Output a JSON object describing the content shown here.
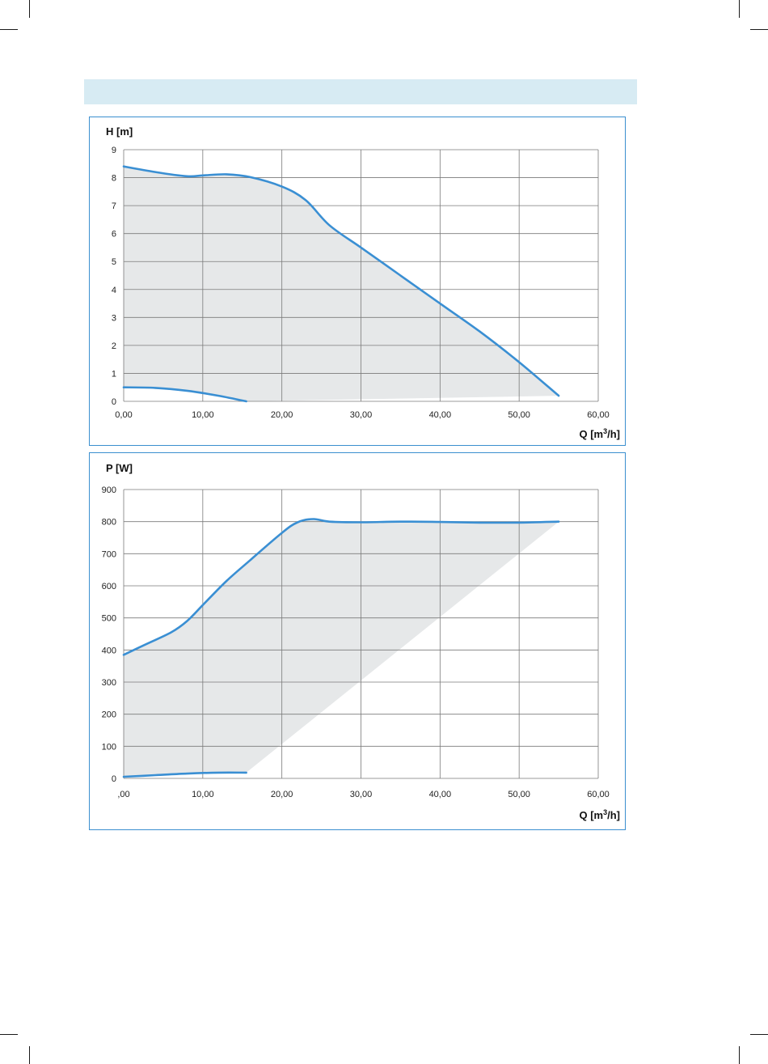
{
  "chart_data": [
    {
      "type": "line",
      "ylabel": "H [m]",
      "xlabel": "Q [m³/h]",
      "xlabel_main": "Q [m",
      "xlabel_sup": "3",
      "xlabel_end": "/h]",
      "xlim": [
        0,
        60
      ],
      "ylim": [
        0,
        9
      ],
      "x_tick_labels": [
        "0,00",
        "10,00",
        "20,00",
        "30,00",
        "40,00",
        "50,00",
        "60,00"
      ],
      "y_tick_labels": [
        "0",
        "1",
        "2",
        "3",
        "4",
        "5",
        "6",
        "7",
        "8",
        "9"
      ],
      "grid": true,
      "series": [
        {
          "role": "max-curve",
          "x": [
            0,
            4,
            8,
            10,
            13,
            16,
            20,
            23,
            26,
            30,
            35,
            40,
            45,
            50,
            55
          ],
          "y": [
            8.4,
            8.2,
            8.05,
            8.08,
            8.12,
            8.02,
            7.68,
            7.2,
            6.3,
            5.5,
            4.5,
            3.5,
            2.5,
            1.4,
            0.2
          ]
        },
        {
          "role": "min-curve",
          "x": [
            0,
            4,
            8,
            12,
            15.5
          ],
          "y": [
            0.5,
            0.48,
            0.38,
            0.2,
            0.0
          ]
        }
      ],
      "colors": {
        "curve": "#3a8fd3",
        "area": "#e6e8e9",
        "grid": "#7a7a7a"
      }
    },
    {
      "type": "line",
      "ylabel": "P [W]",
      "xlabel": "Q [m³/h]",
      "xlabel_main": "Q [m",
      "xlabel_sup": "3",
      "xlabel_end": "/h]",
      "xlim": [
        0,
        60
      ],
      "ylim": [
        0,
        900
      ],
      "x_tick_labels": [
        ",00",
        "10,00",
        "20,00",
        "30,00",
        "40,00",
        "50,00",
        "60,00"
      ],
      "y_tick_labels": [
        "0",
        "100",
        "200",
        "300",
        "400",
        "500",
        "600",
        "700",
        "800",
        "900"
      ],
      "grid": true,
      "series": [
        {
          "role": "max-curve",
          "x": [
            0,
            3,
            6,
            8,
            10,
            13,
            16,
            20,
            22,
            24,
            26,
            30,
            35,
            40,
            45,
            50,
            55
          ],
          "y": [
            385,
            420,
            455,
            490,
            540,
            615,
            680,
            765,
            798,
            808,
            800,
            798,
            800,
            799,
            797,
            797,
            800
          ]
        },
        {
          "role": "min-curve",
          "x": [
            0,
            4,
            8,
            12,
            15.5
          ],
          "y": [
            5,
            10,
            15,
            18,
            18
          ]
        }
      ],
      "colors": {
        "curve": "#3a8fd3",
        "area": "#e6e8e9",
        "grid": "#7a7a7a"
      }
    }
  ]
}
